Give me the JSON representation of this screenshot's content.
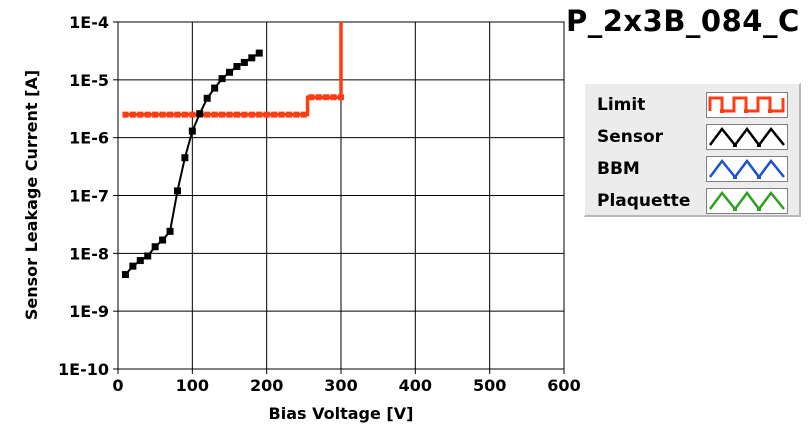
{
  "title": "P_2x3B_084_C",
  "chart_data": {
    "type": "line",
    "xlabel": "Bias Voltage [V]",
    "ylabel": "Sensor Leakage Current [A]",
    "xlim": [
      0,
      600
    ],
    "ylim": [
      1e-10,
      0.0001
    ],
    "yscale": "log",
    "grid": true,
    "x_ticks": [
      "0",
      "100",
      "200",
      "300",
      "400",
      "500",
      "600"
    ],
    "x_tick_values": [
      0,
      100,
      200,
      300,
      400,
      500,
      600
    ],
    "y_ticks": [
      "1E-10",
      "1E-9",
      "1E-8",
      "1E-7",
      "1E-6",
      "1E-5",
      "1E-4"
    ],
    "y_tick_values": [
      1e-10,
      1e-09,
      1e-08,
      1e-07,
      1e-06,
      1e-05,
      0.0001
    ],
    "legend_position": "right",
    "series": [
      {
        "name": "Limit",
        "color": "#ff3c14",
        "swatch": "square-wave",
        "x": [
          10,
          20,
          30,
          40,
          50,
          60,
          70,
          80,
          90,
          100,
          110,
          120,
          130,
          140,
          150,
          160,
          170,
          180,
          190,
          200,
          210,
          220,
          230,
          240,
          250,
          260,
          270,
          280,
          290,
          300
        ],
        "y": [
          2.5e-06,
          2.5e-06,
          2.5e-06,
          2.5e-06,
          2.5e-06,
          2.5e-06,
          2.5e-06,
          2.5e-06,
          2.5e-06,
          2.5e-06,
          2.5e-06,
          2.5e-06,
          2.5e-06,
          2.5e-06,
          2.5e-06,
          2.5e-06,
          2.5e-06,
          2.5e-06,
          2.5e-06,
          2.5e-06,
          2.5e-06,
          2.5e-06,
          2.5e-06,
          2.5e-06,
          2.5e-06,
          5e-06,
          5e-06,
          5e-06,
          5e-06,
          5e-06
        ],
        "step_end": {
          "x": 300,
          "y": 0.0001
        }
      },
      {
        "name": "Sensor",
        "color": "#000000",
        "swatch": "triangle-wave",
        "x": [
          10,
          20,
          30,
          40,
          50,
          60,
          70,
          80,
          90,
          100,
          110,
          120,
          130,
          140,
          150,
          160,
          170,
          180,
          190
        ],
        "y": [
          4.3e-09,
          6e-09,
          7.5e-09,
          9e-09,
          1.3e-08,
          1.7e-08,
          2.4e-08,
          1.2e-07,
          4.5e-07,
          1.3e-06,
          2.6e-06,
          4.8e-06,
          7.2e-06,
          1.05e-05,
          1.35e-05,
          1.7e-05,
          2e-05,
          2.4e-05,
          2.9e-05
        ]
      },
      {
        "name": "BBM",
        "color": "#1e50d2",
        "swatch": "triangle-wave",
        "x": [],
        "y": []
      },
      {
        "name": "Plaquette",
        "color": "#2ea020",
        "swatch": "triangle-wave",
        "x": [],
        "y": []
      }
    ]
  }
}
